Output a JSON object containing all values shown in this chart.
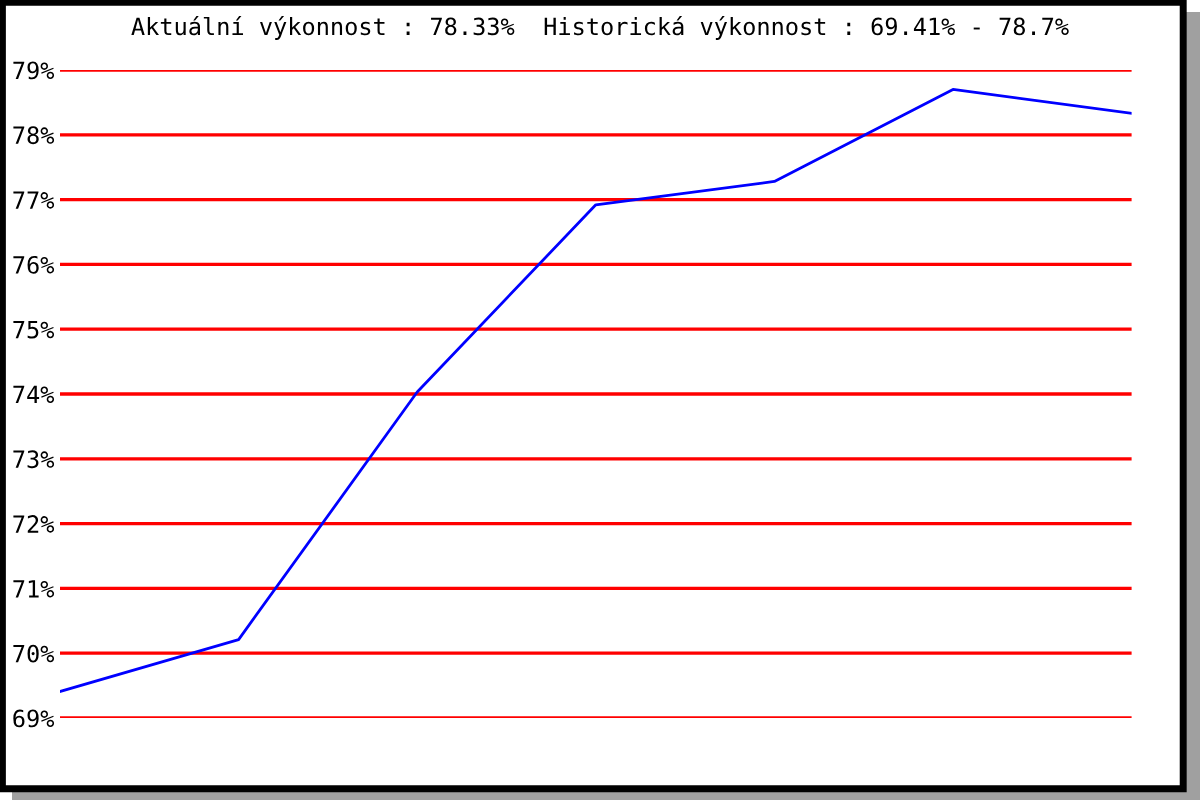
{
  "chart_data": {
    "type": "line",
    "title": "Aktuální výkonnost : 78.33%  Historická výkonnost : 69.41% - 78.7%",
    "categories": [
      null,
      null,
      null,
      null,
      null,
      null,
      null
    ],
    "series": [
      {
        "color": "#0000ff",
        "values": [
          69.41,
          70.21,
          74.03,
          76.92,
          77.28,
          78.7,
          78.33
        ]
      }
    ],
    "ylim": [
      69,
      79
    ],
    "yticks": [
      {
        "value": 69,
        "label": "69%"
      },
      {
        "value": 70,
        "label": "70%"
      },
      {
        "value": 71,
        "label": "71%"
      },
      {
        "value": 72,
        "label": "72%"
      },
      {
        "value": 73,
        "label": "73%"
      },
      {
        "value": 74,
        "label": "74%"
      },
      {
        "value": 75,
        "label": "75%"
      },
      {
        "value": 76,
        "label": "76%"
      },
      {
        "value": 77,
        "label": "77%"
      },
      {
        "value": 78,
        "label": "78%"
      },
      {
        "value": 79,
        "label": "79%"
      }
    ],
    "grid": "y",
    "legend": false,
    "marker": "none",
    "line_style": "solid"
  }
}
